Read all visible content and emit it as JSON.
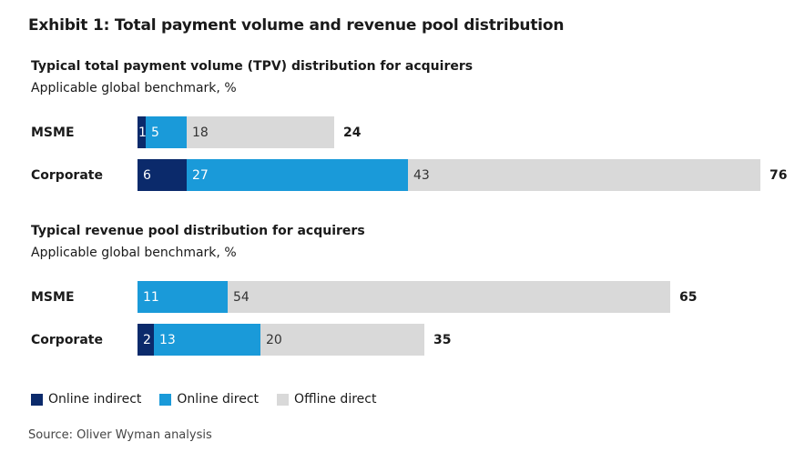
{
  "exhibit_title": "Exhibit 1: Total payment volume and revenue pool distribution",
  "source": "Source: Oliver Wyman analysis",
  "colors": {
    "online_indirect": "#0b2a6b",
    "online_direct": "#1a9ad9",
    "offline_direct": "#d9d9d9"
  },
  "chart_data": [
    {
      "type": "bar",
      "orientation": "horizontal",
      "stacked": true,
      "title": "Typical total payment volume (TPV) distribution for acquirers",
      "subtitle": "Applicable global benchmark, %",
      "categories": [
        "MSME",
        "Corporate"
      ],
      "series": [
        {
          "name": "Online indirect",
          "values": [
            1,
            6
          ]
        },
        {
          "name": "Online direct",
          "values": [
            5,
            27
          ]
        },
        {
          "name": "Offline direct",
          "values": [
            18,
            43
          ]
        }
      ],
      "totals": [
        24,
        76
      ],
      "xlim": [
        0,
        76
      ]
    },
    {
      "type": "bar",
      "orientation": "horizontal",
      "stacked": true,
      "title": "Typical revenue pool distribution for acquirers",
      "subtitle": "Applicable global benchmark, %",
      "categories": [
        "MSME",
        "Corporate"
      ],
      "series": [
        {
          "name": "Online indirect",
          "values": [
            0,
            2
          ]
        },
        {
          "name": "Online direct",
          "values": [
            11,
            13
          ]
        },
        {
          "name": "Offline direct",
          "values": [
            54,
            20
          ]
        }
      ],
      "totals": [
        65,
        35
      ],
      "xlim": [
        0,
        76
      ]
    }
  ],
  "legend": [
    {
      "label": "Online indirect",
      "color": "#0b2a6b"
    },
    {
      "label": "Online direct",
      "color": "#1a9ad9"
    },
    {
      "label": "Offline direct",
      "color": "#d9d9d9"
    }
  ]
}
